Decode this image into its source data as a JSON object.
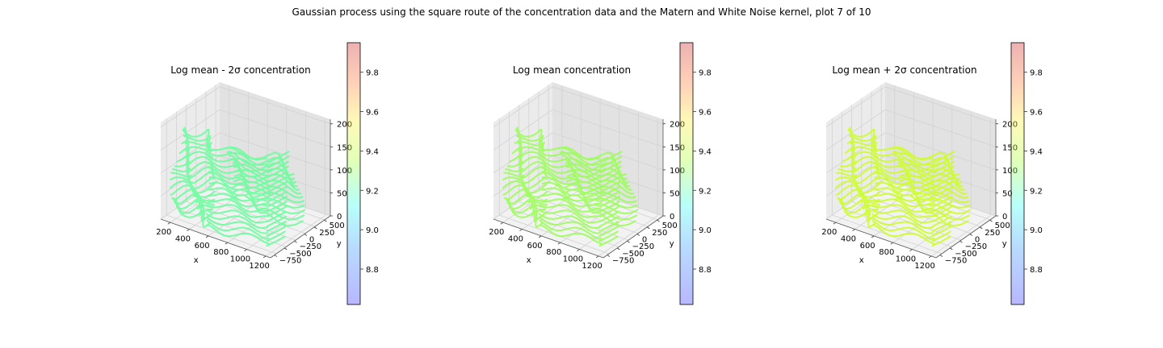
{
  "figure": {
    "suptitle": "Gaussian process using the square route of the concentration data and the Matern and White Noise kernel, plot 7 of 10"
  },
  "chart_data": [
    {
      "type": "scatter",
      "projection": "3d",
      "title": "Log mean - 2σ concentration",
      "xlabel": "x",
      "ylabel": "y",
      "zlabel": "",
      "xticks": [
        200,
        400,
        600,
        800,
        1000,
        1200
      ],
      "yticks": [
        -750,
        -500,
        -250,
        0,
        250,
        500
      ],
      "zticks": [
        0,
        50,
        100,
        150,
        200
      ],
      "xlim": [
        100,
        1250
      ],
      "ylim": [
        -850,
        650
      ],
      "zlim": [
        0,
        210
      ],
      "point_value": 9.3,
      "point_color": "#66ff99",
      "colorbar": {
        "ticks": [
          8.8,
          9.0,
          9.2,
          9.4,
          9.6,
          9.8
        ],
        "range": [
          8.62,
          9.95
        ],
        "colormap": "jet-like",
        "alpha": 0.3
      }
    },
    {
      "type": "scatter",
      "projection": "3d",
      "title": "Log mean concentration",
      "xlabel": "x",
      "ylabel": "y",
      "zlabel": "",
      "xticks": [
        200,
        400,
        600,
        800,
        1000,
        1200
      ],
      "yticks": [
        -750,
        -500,
        -250,
        0,
        250,
        500
      ],
      "zticks": [
        0,
        50,
        100,
        150,
        200
      ],
      "xlim": [
        100,
        1250
      ],
      "ylim": [
        -850,
        650
      ],
      "zlim": [
        0,
        210
      ],
      "point_value": 9.38,
      "point_color": "#99ff55",
      "colorbar": {
        "ticks": [
          8.8,
          9.0,
          9.2,
          9.4,
          9.6,
          9.8
        ],
        "range": [
          8.62,
          9.95
        ],
        "colormap": "jet-like",
        "alpha": 0.3
      }
    },
    {
      "type": "scatter",
      "projection": "3d",
      "title": "Log mean + 2σ concentration",
      "xlabel": "x",
      "ylabel": "y",
      "zlabel": "",
      "xticks": [
        200,
        400,
        600,
        800,
        1000,
        1200
      ],
      "yticks": [
        -750,
        -500,
        -250,
        0,
        250,
        500
      ],
      "zticks": [
        0,
        50,
        100,
        150,
        200
      ],
      "xlim": [
        100,
        1250
      ],
      "ylim": [
        -850,
        650
      ],
      "zlim": [
        0,
        210
      ],
      "point_value": 9.47,
      "point_color": "#ccff22",
      "colorbar": {
        "ticks": [
          8.8,
          9.0,
          9.2,
          9.4,
          9.6,
          9.8
        ],
        "range": [
          8.62,
          9.95
        ],
        "colormap": "jet-like",
        "alpha": 0.3
      }
    }
  ]
}
